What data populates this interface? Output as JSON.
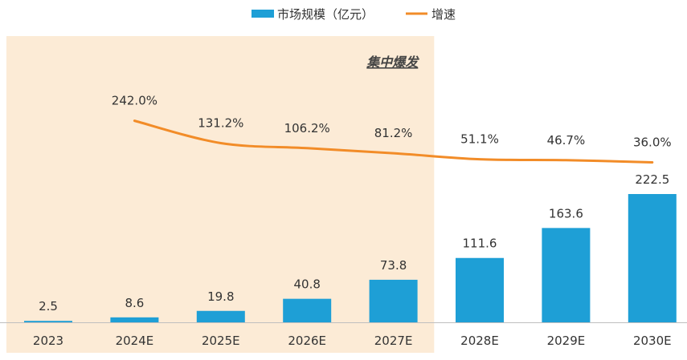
{
  "chart_data": {
    "type": "bar",
    "categories": [
      "2023",
      "2024E",
      "2025E",
      "2026E",
      "2027E",
      "2028E",
      "2029E",
      "2030E"
    ],
    "series": [
      {
        "name": "市场规模（亿元）",
        "type": "bar",
        "axis": "left",
        "color": "#1e9fd6",
        "values": [
          2.5,
          8.6,
          19.8,
          40.8,
          73.8,
          111.6,
          163.6,
          222.5
        ],
        "labels": [
          "2.5",
          "8.6",
          "19.8",
          "40.8",
          "73.8",
          "111.6",
          "163.6",
          "222.5"
        ]
      },
      {
        "name": "增速",
        "type": "line",
        "axis": "right",
        "color": "#f28c28",
        "values": [
          null,
          242.0,
          131.2,
          106.2,
          81.2,
          51.1,
          46.7,
          36.0
        ],
        "labels": [
          "",
          "242.0%",
          "131.2%",
          "106.2%",
          "81.2%",
          "51.1%",
          "46.7%",
          "36.0%"
        ]
      }
    ],
    "highlight": {
      "label": "集中爆发",
      "from": "2023",
      "to": "2027E",
      "color": "#fcebd6"
    },
    "legend_position": "top-center",
    "grid": false
  }
}
